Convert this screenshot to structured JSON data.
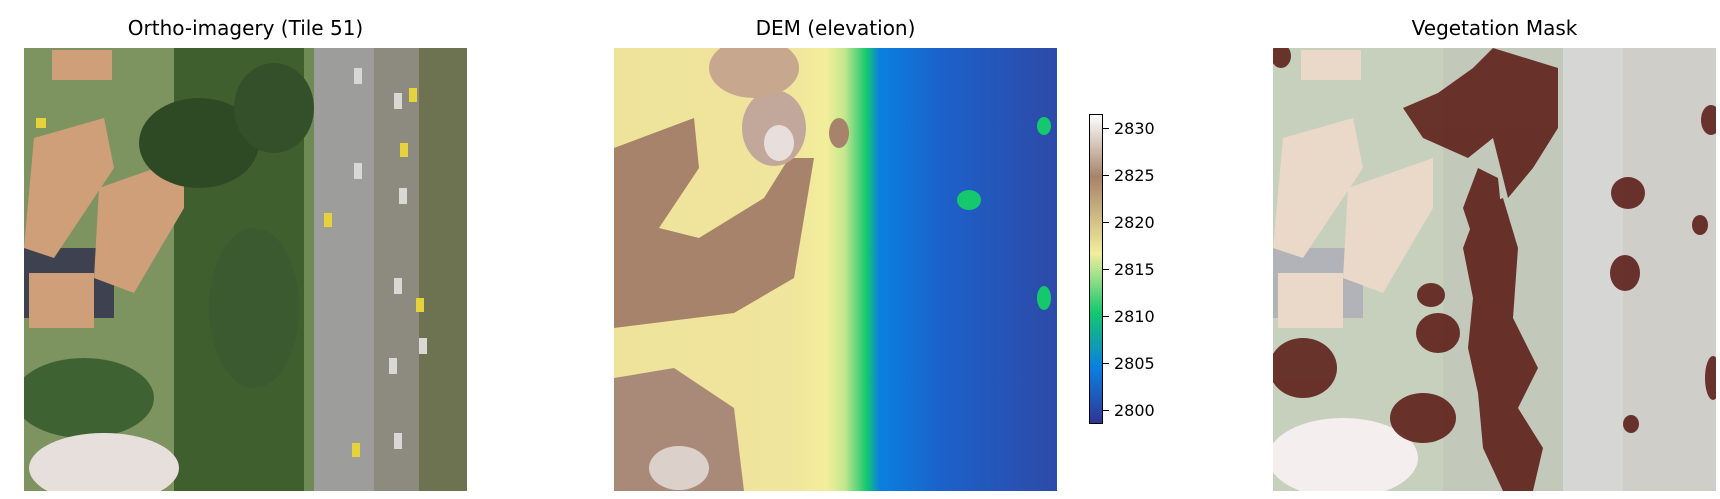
{
  "panels": [
    {
      "title": "Ortho-imagery (Tile 51)"
    },
    {
      "title": "DEM (elevation)"
    },
    {
      "title": "Vegetation Mask"
    }
  ],
  "colorbar": {
    "min": 2799,
    "max": 2831,
    "ticks": [
      "2830",
      "2825",
      "2820",
      "2815",
      "2810",
      "2805",
      "2800"
    ],
    "colormap": [
      "#313695",
      "#0a7fe0",
      "#15c86e",
      "#f2ee9b",
      "#a7836b",
      "#ffffff"
    ]
  },
  "colors": {
    "roof": "#cf9f79",
    "vegetation_dark": "#2d4a25",
    "road": "#9d9d9b",
    "mask": "#5b1c16"
  }
}
